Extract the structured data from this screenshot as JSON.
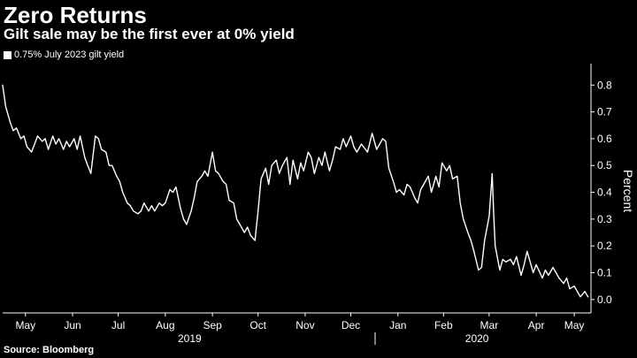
{
  "title": "Zero Returns",
  "subtitle": "Gilt sale may be the first ever at 0% yield",
  "source": "Source: Bloomberg",
  "colors": {
    "background": "#000000",
    "line": "#ffffff",
    "axis": "#ffffff",
    "text": "#ffffff"
  },
  "chart_data": {
    "type": "line",
    "title": "",
    "xlabel": "",
    "ylabel": "Percent",
    "ylim": [
      -0.05,
      0.88
    ],
    "yticks": [
      0.0,
      0.1,
      0.2,
      0.3,
      0.4,
      0.5,
      0.6,
      0.7,
      0.8
    ],
    "ytick_labels": [
      "0.0",
      "0.1",
      "0.2",
      "0.3",
      "0.4",
      "0.5",
      "0.6",
      "0.7",
      "0.8"
    ],
    "grid": false,
    "legend_position": "top-left",
    "xlim": [
      "2019-05-01",
      "2020-05-22"
    ],
    "xticks": [
      {
        "date": "2019-05-16",
        "label": "May"
      },
      {
        "date": "2019-06-16",
        "label": "Jun"
      },
      {
        "date": "2019-07-16",
        "label": "Jul"
      },
      {
        "date": "2019-08-16",
        "label": "Aug"
      },
      {
        "date": "2019-09-16",
        "label": "Sep"
      },
      {
        "date": "2019-10-16",
        "label": "Oct"
      },
      {
        "date": "2019-11-16",
        "label": "Nov"
      },
      {
        "date": "2019-12-16",
        "label": "Dec"
      },
      {
        "date": "2020-01-16",
        "label": "Jan"
      },
      {
        "date": "2020-02-15",
        "label": "Feb"
      },
      {
        "date": "2020-03-16",
        "label": "Mar"
      },
      {
        "date": "2020-04-16",
        "label": "Apr"
      },
      {
        "date": "2020-05-11",
        "label": "May"
      }
    ],
    "year_labels": [
      {
        "date": "2019-09-01",
        "label": "2019"
      },
      {
        "date": "2020-03-08",
        "label": "2020"
      }
    ],
    "year_divider": "2020-01-01",
    "series": [
      {
        "name": "0.75% July 2023 gilt yield",
        "x": [
          "2019-05-01",
          "2019-05-03",
          "2019-05-06",
          "2019-05-08",
          "2019-05-10",
          "2019-05-13",
          "2019-05-15",
          "2019-05-17",
          "2019-05-20",
          "2019-05-22",
          "2019-05-24",
          "2019-05-27",
          "2019-05-29",
          "2019-05-31",
          "2019-06-03",
          "2019-06-05",
          "2019-06-07",
          "2019-06-10",
          "2019-06-12",
          "2019-06-14",
          "2019-06-17",
          "2019-06-19",
          "2019-06-21",
          "2019-06-24",
          "2019-06-26",
          "2019-06-28",
          "2019-07-01",
          "2019-07-03",
          "2019-07-05",
          "2019-07-08",
          "2019-07-10",
          "2019-07-12",
          "2019-07-15",
          "2019-07-17",
          "2019-07-19",
          "2019-07-22",
          "2019-07-24",
          "2019-07-26",
          "2019-07-29",
          "2019-07-31",
          "2019-08-02",
          "2019-08-05",
          "2019-08-07",
          "2019-08-09",
          "2019-08-12",
          "2019-08-14",
          "2019-08-16",
          "2019-08-19",
          "2019-08-21",
          "2019-08-23",
          "2019-08-26",
          "2019-08-28",
          "2019-08-30",
          "2019-09-02",
          "2019-09-04",
          "2019-09-06",
          "2019-09-09",
          "2019-09-11",
          "2019-09-13",
          "2019-09-16",
          "2019-09-18",
          "2019-09-20",
          "2019-09-23",
          "2019-09-25",
          "2019-09-27",
          "2019-09-30",
          "2019-10-02",
          "2019-10-04",
          "2019-10-07",
          "2019-10-09",
          "2019-10-11",
          "2019-10-14",
          "2019-10-16",
          "2019-10-18",
          "2019-10-21",
          "2019-10-23",
          "2019-10-25",
          "2019-10-28",
          "2019-10-30",
          "2019-11-01",
          "2019-11-04",
          "2019-11-06",
          "2019-11-08",
          "2019-11-11",
          "2019-11-13",
          "2019-11-15",
          "2019-11-18",
          "2019-11-20",
          "2019-11-22",
          "2019-11-25",
          "2019-11-27",
          "2019-11-29",
          "2019-12-02",
          "2019-12-04",
          "2019-12-06",
          "2019-12-09",
          "2019-12-11",
          "2019-12-13",
          "2019-12-16",
          "2019-12-18",
          "2019-12-20",
          "2019-12-23",
          "2019-12-27",
          "2019-12-30",
          "2020-01-02",
          "2020-01-06",
          "2020-01-08",
          "2020-01-10",
          "2020-01-13",
          "2020-01-15",
          "2020-01-17",
          "2020-01-20",
          "2020-01-22",
          "2020-01-24",
          "2020-01-27",
          "2020-01-29",
          "2020-01-31",
          "2020-02-03",
          "2020-02-05",
          "2020-02-07",
          "2020-02-10",
          "2020-02-12",
          "2020-02-14",
          "2020-02-17",
          "2020-02-19",
          "2020-02-21",
          "2020-02-24",
          "2020-02-26",
          "2020-02-28",
          "2020-03-02",
          "2020-03-04",
          "2020-03-06",
          "2020-03-09",
          "2020-03-11",
          "2020-03-13",
          "2020-03-16",
          "2020-03-18",
          "2020-03-19",
          "2020-03-20",
          "2020-03-23",
          "2020-03-25",
          "2020-03-27",
          "2020-03-30",
          "2020-04-01",
          "2020-04-03",
          "2020-04-06",
          "2020-04-08",
          "2020-04-10",
          "2020-04-14",
          "2020-04-16",
          "2020-04-20",
          "2020-04-22",
          "2020-04-24",
          "2020-04-27",
          "2020-04-29",
          "2020-05-01",
          "2020-05-04",
          "2020-05-06",
          "2020-05-08",
          "2020-05-11",
          "2020-05-13",
          "2020-05-15",
          "2020-05-18",
          "2020-05-20"
        ],
        "y": [
          0.8,
          0.72,
          0.66,
          0.63,
          0.64,
          0.6,
          0.61,
          0.57,
          0.55,
          0.58,
          0.61,
          0.59,
          0.6,
          0.56,
          0.61,
          0.58,
          0.6,
          0.56,
          0.59,
          0.57,
          0.6,
          0.56,
          0.61,
          0.53,
          0.5,
          0.47,
          0.61,
          0.6,
          0.56,
          0.55,
          0.5,
          0.5,
          0.46,
          0.44,
          0.4,
          0.36,
          0.35,
          0.33,
          0.32,
          0.33,
          0.36,
          0.33,
          0.35,
          0.33,
          0.36,
          0.35,
          0.36,
          0.41,
          0.4,
          0.42,
          0.34,
          0.3,
          0.28,
          0.33,
          0.38,
          0.44,
          0.46,
          0.48,
          0.46,
          0.55,
          0.48,
          0.47,
          0.44,
          0.43,
          0.37,
          0.36,
          0.3,
          0.28,
          0.25,
          0.27,
          0.24,
          0.22,
          0.33,
          0.45,
          0.49,
          0.43,
          0.5,
          0.52,
          0.47,
          0.5,
          0.53,
          0.43,
          0.52,
          0.45,
          0.51,
          0.48,
          0.55,
          0.53,
          0.47,
          0.53,
          0.5,
          0.55,
          0.48,
          0.52,
          0.57,
          0.56,
          0.6,
          0.57,
          0.61,
          0.57,
          0.55,
          0.58,
          0.55,
          0.62,
          0.56,
          0.6,
          0.59,
          0.49,
          0.44,
          0.4,
          0.41,
          0.39,
          0.43,
          0.42,
          0.38,
          0.36,
          0.41,
          0.44,
          0.46,
          0.4,
          0.46,
          0.42,
          0.51,
          0.48,
          0.5,
          0.45,
          0.46,
          0.36,
          0.3,
          0.25,
          0.22,
          0.18,
          0.11,
          0.12,
          0.22,
          0.31,
          0.47,
          0.32,
          0.2,
          0.11,
          0.15,
          0.14,
          0.15,
          0.13,
          0.16,
          0.09,
          0.13,
          0.18,
          0.1,
          0.13,
          0.08,
          0.11,
          0.09,
          0.12,
          0.1,
          0.08,
          0.06,
          0.08,
          0.04,
          0.05,
          0.03,
          0.01,
          0.03,
          0.01
        ]
      }
    ]
  }
}
